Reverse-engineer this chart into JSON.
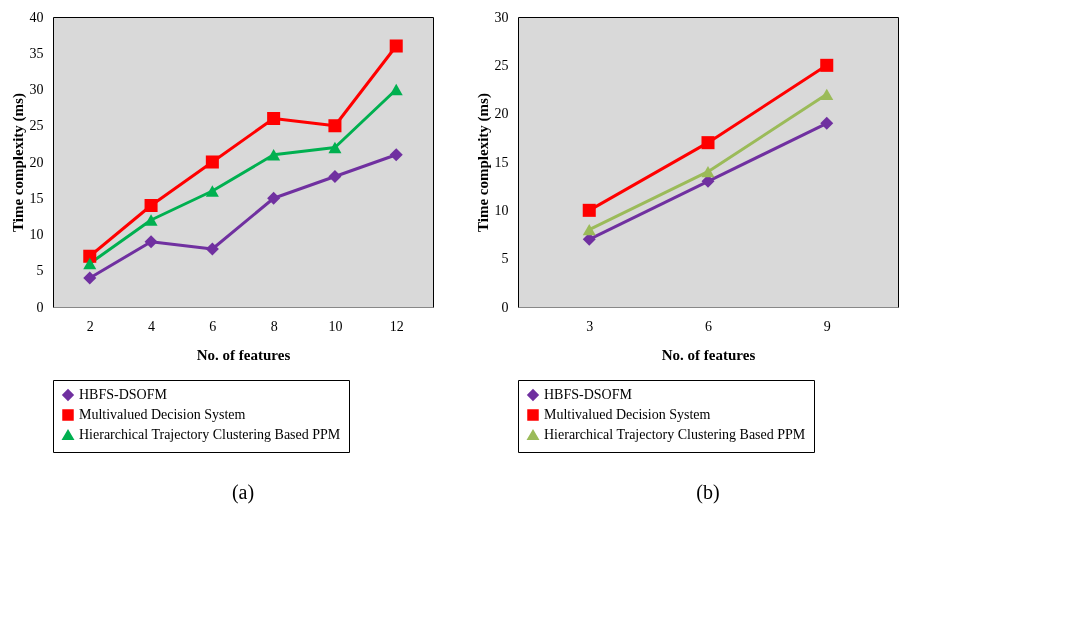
{
  "chart_data": [
    {
      "type": "line",
      "categories": [
        "2",
        "4",
        "6",
        "8",
        "10",
        "12"
      ],
      "xlabel": "No. of features",
      "ylabel": "Time complexity (ms)",
      "ylim": [
        0,
        40
      ],
      "yticks": [
        0,
        5,
        10,
        15,
        20,
        25,
        30,
        35,
        40
      ],
      "grid": false,
      "legend": "bottom",
      "annotations": [
        "(a)"
      ],
      "series": [
        {
          "name": "HBFS-DSOFM",
          "color": "#7030a0",
          "marker": "diamond",
          "values": [
            4,
            9,
            8,
            15,
            18,
            21
          ]
        },
        {
          "name": "Multivalued Decision System",
          "color": "#ff0000",
          "marker": "square",
          "values": [
            7,
            14,
            20,
            26,
            25,
            36
          ]
        },
        {
          "name": "Hierarchical Trajectory Clustering Based PPM",
          "color": "#00b050",
          "marker": "triangle",
          "values": [
            6,
            12,
            16,
            21,
            22,
            30
          ]
        }
      ]
    },
    {
      "type": "line",
      "categories": [
        "3",
        "6",
        "9"
      ],
      "xlabel": "No. of features",
      "ylabel": "Time complexity (ms)",
      "ylim": [
        0,
        30
      ],
      "yticks": [
        0,
        5,
        10,
        15,
        20,
        25,
        30
      ],
      "grid": false,
      "legend": "bottom",
      "annotations": [
        "(b)"
      ],
      "series": [
        {
          "name": "HBFS-DSOFM",
          "color": "#7030a0",
          "marker": "diamond",
          "values": [
            7,
            13,
            19
          ]
        },
        {
          "name": "Multivalued Decision System",
          "color": "#ff0000",
          "marker": "square",
          "values": [
            10,
            17,
            25
          ]
        },
        {
          "name": "Hierarchical Trajectory Clustering Based PPM",
          "color": "#9bbb59",
          "marker": "triangle",
          "values": [
            8,
            14,
            22
          ]
        }
      ]
    }
  ]
}
